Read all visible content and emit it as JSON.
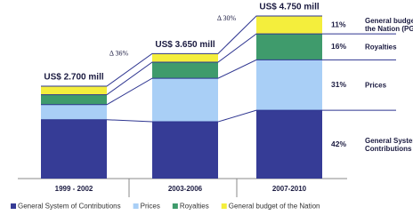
{
  "chart_data": {
    "type": "stacked-bar",
    "categories": [
      "1999 - 2002",
      "2003-2006",
      "2007-2010"
    ],
    "series": [
      {
        "name": "General System of Contributions",
        "color": "#363c96",
        "values": [
          1720,
          1660,
          1995
        ],
        "share": {
          "value": 42,
          "label": "42%"
        },
        "callout": "General System of Contributions"
      },
      {
        "name": "Prices",
        "color": "#a9cff6",
        "values": [
          440,
          1270,
          1472.5
        ],
        "share": {
          "value": 31,
          "label": "31%"
        },
        "callout": "Prices"
      },
      {
        "name": "Royalties",
        "color": "#3f9b6c",
        "values": [
          290,
          470,
          760
        ],
        "share": {
          "value": 16,
          "label": "16%"
        },
        "callout": "Royalties"
      },
      {
        "name": "General budget of the Nation",
        "color": "#f4ee3c",
        "values": [
          250,
          250,
          522.5
        ],
        "share": {
          "value": 11,
          "label": "11%"
        },
        "callout": "General budget of the Nation (PGN)"
      }
    ],
    "totals": [
      {
        "value": 2700,
        "label": "US$ 2.700 mill"
      },
      {
        "value": 3650,
        "label": "US$ 3.650 mill"
      },
      {
        "value": 4750,
        "label": "US$ 4.750 mill"
      }
    ],
    "growth": [
      {
        "value": 36,
        "label": "Δ 36%"
      },
      {
        "value": 30,
        "label": "Δ 30%"
      }
    ]
  }
}
